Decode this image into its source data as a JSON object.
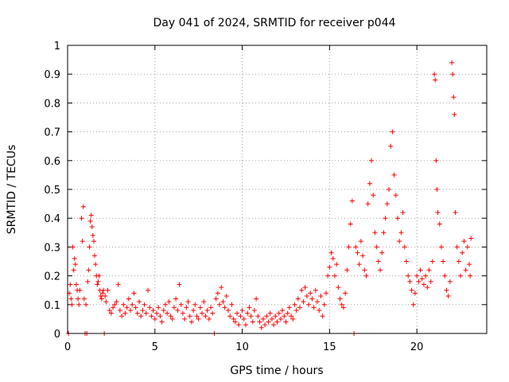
{
  "chart_data": {
    "type": "scatter",
    "title": "Day 041 of 2024, SRMTID for receiver p044",
    "xlabel": "GPS time / hours",
    "ylabel": "SRMTID / TECUs",
    "xlim": [
      0,
      24
    ],
    "ylim": [
      0,
      1
    ],
    "xticks": [
      0,
      5,
      10,
      15,
      20
    ],
    "xtick_labels": [
      "0",
      "5",
      "10",
      "15",
      "20"
    ],
    "yticks": [
      0,
      0.1,
      0.2,
      0.3,
      0.4,
      0.5,
      0.6,
      0.7,
      0.8,
      0.9,
      1
    ],
    "ytick_labels": [
      "0",
      "0.1",
      "0.2",
      "0.3",
      "0.4",
      "0.5",
      "0.6",
      "0.7",
      "0.8",
      "0.9",
      "1"
    ],
    "grid": true,
    "marker": "+",
    "color": "#ff0000",
    "series": [
      {
        "name": "p044",
        "points": [
          [
            0.05,
            0.0
          ],
          [
            0.1,
            0.14
          ],
          [
            0.15,
            0.17
          ],
          [
            0.2,
            0.12
          ],
          [
            0.25,
            0.1
          ],
          [
            0.3,
            0.3
          ],
          [
            0.35,
            0.22
          ],
          [
            0.4,
            0.26
          ],
          [
            0.45,
            0.24
          ],
          [
            0.5,
            0.17
          ],
          [
            0.55,
            0.15
          ],
          [
            0.6,
            0.12
          ],
          [
            0.65,
            0.1
          ],
          [
            0.7,
            0.15
          ],
          [
            0.8,
            0.4
          ],
          [
            0.85,
            0.32
          ],
          [
            0.9,
            0.44
          ],
          [
            0.95,
            0.12
          ],
          [
            1.0,
            0.0
          ],
          [
            1.05,
            0.1
          ],
          [
            1.1,
            0.0
          ],
          [
            1.15,
            0.18
          ],
          [
            1.2,
            0.22
          ],
          [
            1.25,
            0.3
          ],
          [
            1.3,
            0.39
          ],
          [
            1.35,
            0.41
          ],
          [
            1.4,
            0.37
          ],
          [
            1.45,
            0.34
          ],
          [
            1.5,
            0.32
          ],
          [
            1.55,
            0.27
          ],
          [
            1.6,
            0.24
          ],
          [
            1.65,
            0.2
          ],
          [
            1.7,
            0.17
          ],
          [
            1.75,
            0.18
          ],
          [
            1.8,
            0.2
          ],
          [
            1.85,
            0.15
          ],
          [
            1.9,
            0.13
          ],
          [
            1.95,
            0.12
          ],
          [
            2.0,
            0.14
          ],
          [
            2.05,
            0.15
          ],
          [
            2.1,
            0.0
          ],
          [
            2.15,
            0.13
          ],
          [
            2.2,
            0.11
          ],
          [
            2.3,
            0.15
          ],
          [
            2.4,
            0.08
          ],
          [
            2.5,
            0.07
          ],
          [
            2.6,
            0.09
          ],
          [
            2.7,
            0.1
          ],
          [
            2.8,
            0.11
          ],
          [
            2.9,
            0.17
          ],
          [
            3.0,
            0.08
          ],
          [
            3.1,
            0.06
          ],
          [
            3.2,
            0.1
          ],
          [
            3.3,
            0.07
          ],
          [
            3.4,
            0.09
          ],
          [
            3.5,
            0.12
          ],
          [
            3.6,
            0.08
          ],
          [
            3.7,
            0.1
          ],
          [
            3.8,
            0.14
          ],
          [
            3.9,
            0.09
          ],
          [
            4.0,
            0.07
          ],
          [
            4.1,
            0.11
          ],
          [
            4.2,
            0.06
          ],
          [
            4.3,
            0.08
          ],
          [
            4.4,
            0.1
          ],
          [
            4.5,
            0.07
          ],
          [
            4.6,
            0.15
          ],
          [
            4.7,
            0.09
          ],
          [
            4.8,
            0.06
          ],
          [
            4.9,
            0.08
          ],
          [
            5.0,
            0.05
          ],
          [
            5.1,
            0.07
          ],
          [
            5.2,
            0.09
          ],
          [
            5.3,
            0.06
          ],
          [
            5.4,
            0.04
          ],
          [
            5.5,
            0.08
          ],
          [
            5.6,
            0.1
          ],
          [
            5.7,
            0.07
          ],
          [
            5.8,
            0.11
          ],
          [
            5.9,
            0.06
          ],
          [
            6.0,
            0.05
          ],
          [
            6.1,
            0.09
          ],
          [
            6.2,
            0.12
          ],
          [
            6.3,
            0.08
          ],
          [
            6.4,
            0.17
          ],
          [
            6.5,
            0.1
          ],
          [
            6.6,
            0.07
          ],
          [
            6.7,
            0.05
          ],
          [
            6.8,
            0.09
          ],
          [
            6.9,
            0.11
          ],
          [
            7.0,
            0.06
          ],
          [
            7.1,
            0.04
          ],
          [
            7.2,
            0.08
          ],
          [
            7.3,
            0.1
          ],
          [
            7.4,
            0.06
          ],
          [
            7.5,
            0.05
          ],
          [
            7.6,
            0.09
          ],
          [
            7.7,
            0.07
          ],
          [
            7.8,
            0.11
          ],
          [
            7.9,
            0.06
          ],
          [
            8.0,
            0.08
          ],
          [
            8.1,
            0.05
          ],
          [
            8.2,
            0.09
          ],
          [
            8.3,
            0.07
          ],
          [
            8.4,
            0.0
          ],
          [
            8.5,
            0.12
          ],
          [
            8.6,
            0.14
          ],
          [
            8.7,
            0.1
          ],
          [
            8.8,
            0.16
          ],
          [
            8.9,
            0.11
          ],
          [
            9.0,
            0.09
          ],
          [
            9.1,
            0.13
          ],
          [
            9.2,
            0.08
          ],
          [
            9.3,
            0.06
          ],
          [
            9.4,
            0.1
          ],
          [
            9.5,
            0.05
          ],
          [
            9.6,
            0.04
          ],
          [
            9.7,
            0.07
          ],
          [
            9.8,
            0.03
          ],
          [
            9.9,
            0.06
          ],
          [
            10.0,
            0.08
          ],
          [
            10.1,
            0.05
          ],
          [
            10.2,
            0.03
          ],
          [
            10.3,
            0.07
          ],
          [
            10.4,
            0.09
          ],
          [
            10.5,
            0.06
          ],
          [
            10.6,
            0.04
          ],
          [
            10.7,
            0.08
          ],
          [
            10.8,
            0.12
          ],
          [
            10.9,
            0.06
          ],
          [
            11.0,
            0.04
          ],
          [
            11.1,
            0.02
          ],
          [
            11.2,
            0.05
          ],
          [
            11.3,
            0.03
          ],
          [
            11.4,
            0.06
          ],
          [
            11.5,
            0.04
          ],
          [
            11.6,
            0.07
          ],
          [
            11.7,
            0.05
          ],
          [
            11.8,
            0.03
          ],
          [
            11.9,
            0.06
          ],
          [
            12.0,
            0.04
          ],
          [
            12.1,
            0.07
          ],
          [
            12.2,
            0.05
          ],
          [
            12.3,
            0.08
          ],
          [
            12.4,
            0.06
          ],
          [
            12.5,
            0.04
          ],
          [
            12.6,
            0.07
          ],
          [
            12.7,
            0.09
          ],
          [
            12.8,
            0.06
          ],
          [
            12.9,
            0.05
          ],
          [
            13.0,
            0.1
          ],
          [
            13.1,
            0.08
          ],
          [
            13.2,
            0.12
          ],
          [
            13.3,
            0.09
          ],
          [
            13.4,
            0.15
          ],
          [
            13.5,
            0.11
          ],
          [
            13.6,
            0.16
          ],
          [
            13.7,
            0.13
          ],
          [
            13.8,
            0.1
          ],
          [
            13.9,
            0.14
          ],
          [
            14.0,
            0.12
          ],
          [
            14.1,
            0.09
          ],
          [
            14.2,
            0.15
          ],
          [
            14.3,
            0.11
          ],
          [
            14.4,
            0.08
          ],
          [
            14.5,
            0.13
          ],
          [
            14.6,
            0.06
          ],
          [
            14.7,
            0.1
          ],
          [
            14.8,
            0.14
          ],
          [
            14.9,
            0.2
          ],
          [
            15.0,
            0.23
          ],
          [
            15.1,
            0.28
          ],
          [
            15.2,
            0.26
          ],
          [
            15.3,
            0.2
          ],
          [
            15.4,
            0.24
          ],
          [
            15.5,
            0.16
          ],
          [
            15.6,
            0.12
          ],
          [
            15.7,
            0.1
          ],
          [
            15.8,
            0.09
          ],
          [
            15.9,
            0.14
          ],
          [
            16.0,
            0.22
          ],
          [
            16.1,
            0.3
          ],
          [
            16.2,
            0.38
          ],
          [
            16.3,
            0.46
          ],
          [
            16.4,
            0.0
          ],
          [
            16.5,
            0.3
          ],
          [
            16.6,
            0.28
          ],
          [
            16.7,
            0.24
          ],
          [
            16.8,
            0.32
          ],
          [
            16.9,
            0.27
          ],
          [
            17.0,
            0.22
          ],
          [
            17.1,
            0.2
          ],
          [
            17.2,
            0.45
          ],
          [
            17.3,
            0.52
          ],
          [
            17.4,
            0.6
          ],
          [
            17.5,
            0.48
          ],
          [
            17.6,
            0.35
          ],
          [
            17.7,
            0.3
          ],
          [
            17.8,
            0.25
          ],
          [
            17.9,
            0.22
          ],
          [
            18.0,
            0.28
          ],
          [
            18.1,
            0.35
          ],
          [
            18.2,
            0.4
          ],
          [
            18.3,
            0.45
          ],
          [
            18.4,
            0.5
          ],
          [
            18.5,
            0.65
          ],
          [
            18.6,
            0.7
          ],
          [
            18.7,
            0.55
          ],
          [
            18.8,
            0.48
          ],
          [
            18.9,
            0.4
          ],
          [
            19.0,
            0.32
          ],
          [
            19.1,
            0.35
          ],
          [
            19.2,
            0.42
          ],
          [
            19.3,
            0.3
          ],
          [
            19.4,
            0.25
          ],
          [
            19.5,
            0.2
          ],
          [
            19.6,
            0.18
          ],
          [
            19.7,
            0.15
          ],
          [
            19.8,
            0.1
          ],
          [
            19.9,
            0.14
          ],
          [
            20.0,
            0.2
          ],
          [
            20.1,
            0.18
          ],
          [
            20.2,
            0.22
          ],
          [
            20.3,
            0.19
          ],
          [
            20.4,
            0.17
          ],
          [
            20.5,
            0.2
          ],
          [
            20.6,
            0.16
          ],
          [
            20.7,
            0.22
          ],
          [
            20.8,
            0.18
          ],
          [
            20.9,
            0.25
          ],
          [
            21.0,
            0.9
          ],
          [
            21.05,
            0.88
          ],
          [
            21.1,
            0.6
          ],
          [
            21.15,
            0.5
          ],
          [
            21.2,
            0.42
          ],
          [
            21.3,
            0.38
          ],
          [
            21.4,
            0.3
          ],
          [
            21.5,
            0.25
          ],
          [
            21.6,
            0.2
          ],
          [
            21.7,
            0.15
          ],
          [
            21.8,
            0.13
          ],
          [
            21.9,
            0.18
          ],
          [
            22.0,
            0.94
          ],
          [
            22.05,
            0.9
          ],
          [
            22.1,
            0.82
          ],
          [
            22.15,
            0.76
          ],
          [
            22.2,
            0.42
          ],
          [
            22.3,
            0.3
          ],
          [
            22.4,
            0.25
          ],
          [
            22.5,
            0.2
          ],
          [
            22.6,
            0.28
          ],
          [
            22.7,
            0.32
          ],
          [
            22.8,
            0.22
          ],
          [
            22.9,
            0.3
          ],
          [
            23.0,
            0.24
          ],
          [
            23.05,
            0.2
          ],
          [
            23.1,
            0.33
          ]
        ]
      }
    ]
  }
}
